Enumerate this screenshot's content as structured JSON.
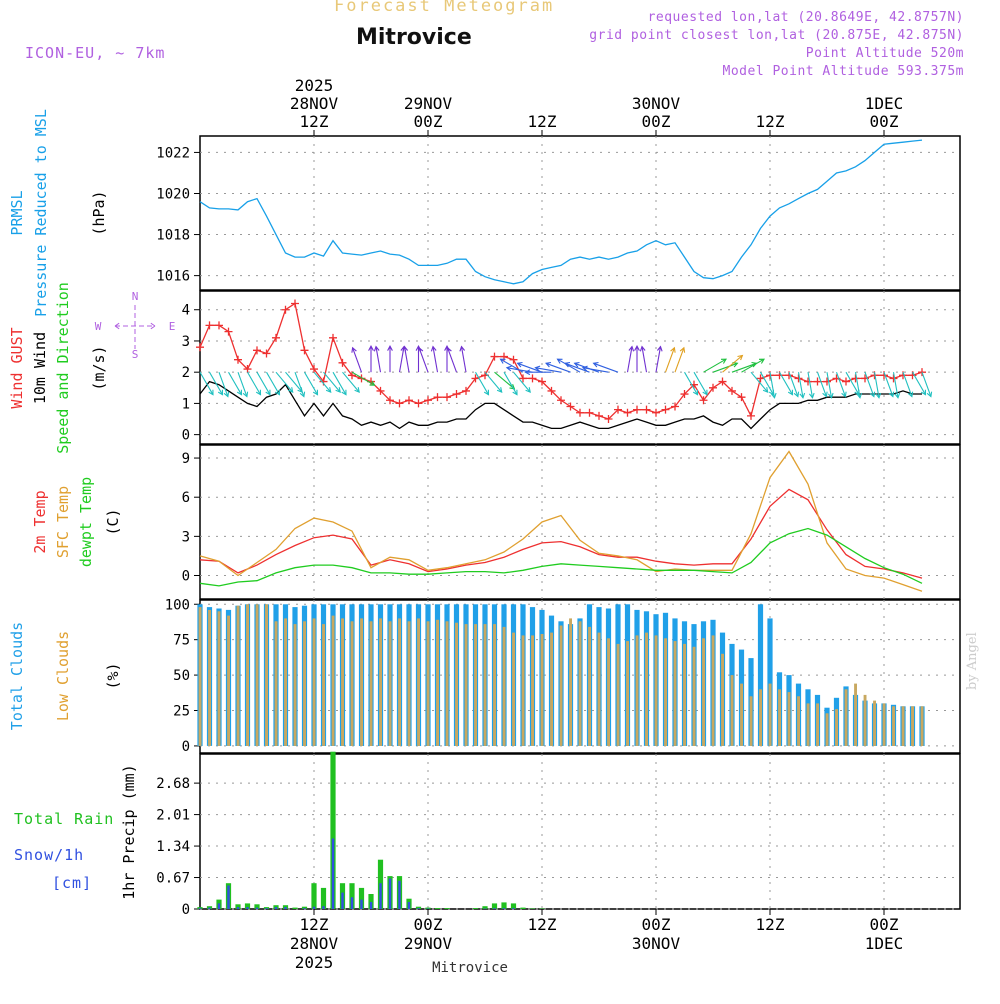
{
  "header": {
    "title": "Forecast Meteogram",
    "station": "Mitrovice",
    "model": "ICON-EU, ~ 7km",
    "requested": "requested lon,lat (20.8649E, 42.8757N)",
    "grid_point": "grid point closest lon,lat (20.875E, 42.875N)",
    "point_altitude": "Point Altitude 520m",
    "model_altitude": "Model Point Altitude 593.375m",
    "credit": "by Angel",
    "footer_station": "Mitrovice"
  },
  "time_axis": {
    "start_hour": 0,
    "end_hour": 80,
    "ticks": [
      {
        "hour": 12,
        "top": [
          "2025",
          "28NOV",
          "12Z"
        ],
        "bottom": [
          "12Z",
          "28NOV",
          "2025"
        ]
      },
      {
        "hour": 24,
        "top": [
          "29NOV",
          "00Z"
        ],
        "bottom": [
          "00Z",
          "29NOV"
        ]
      },
      {
        "hour": 36,
        "top": [
          "12Z"
        ],
        "bottom": [
          "12Z"
        ]
      },
      {
        "hour": 48,
        "top": [
          "30NOV",
          "00Z"
        ],
        "bottom": [
          "00Z",
          "30NOV"
        ]
      },
      {
        "hour": 60,
        "top": [
          "12Z"
        ],
        "bottom": [
          "12Z"
        ]
      },
      {
        "hour": 72,
        "top": [
          "1DEC",
          "00Z"
        ],
        "bottom": [
          "00Z",
          "1DEC"
        ]
      }
    ]
  },
  "colors": {
    "pressure": "#18a0e8",
    "gust": "#ee3030",
    "wind": "#000000",
    "temp": "#ee3030",
    "sfc_temp": "#e0a030",
    "dewpt": "#20cc20",
    "total_cloud": "#20a0e8",
    "low_cloud": "#c8a860",
    "rain": "#20c020",
    "snow": "#3050e0",
    "label_purple": "#b060e0"
  },
  "chart_data": [
    {
      "type": "line",
      "name": "pressure",
      "title": "Pressure Reduced to MSL",
      "labels": [
        "PRMSL",
        "Pressure Reduced to MSL"
      ],
      "unit": "(hPa)",
      "ylim": [
        1015.3,
        1022.8
      ],
      "yticks": [
        1016,
        1018,
        1020,
        1022
      ],
      "x": [
        0,
        1,
        2,
        3,
        4,
        5,
        6,
        7,
        8,
        9,
        10,
        11,
        12,
        13,
        14,
        15,
        16,
        17,
        18,
        19,
        20,
        21,
        22,
        23,
        24,
        25,
        26,
        27,
        28,
        29,
        30,
        31,
        32,
        33,
        34,
        35,
        36,
        37,
        38,
        39,
        40,
        41,
        42,
        43,
        44,
        45,
        46,
        47,
        48,
        49,
        50,
        51,
        52,
        53,
        54,
        55,
        56,
        57,
        58,
        59,
        60,
        61,
        62,
        63,
        64,
        65,
        66,
        67,
        68,
        69,
        70,
        71,
        72,
        73,
        74,
        75,
        76
      ],
      "values": [
        1019.6,
        1019.3,
        1019.25,
        1019.25,
        1019.2,
        1019.6,
        1019.75,
        1018.9,
        1018.0,
        1017.1,
        1016.9,
        1016.9,
        1017.1,
        1016.95,
        1017.7,
        1017.1,
        1017.05,
        1017.0,
        1017.1,
        1017.2,
        1017.05,
        1017.0,
        1016.8,
        1016.5,
        1016.5,
        1016.5,
        1016.6,
        1016.8,
        1016.8,
        1016.2,
        1015.95,
        1015.8,
        1015.7,
        1015.6,
        1015.7,
        1016.1,
        1016.3,
        1016.4,
        1016.5,
        1016.8,
        1016.9,
        1016.8,
        1016.9,
        1016.8,
        1016.9,
        1017.1,
        1017.2,
        1017.5,
        1017.7,
        1017.5,
        1017.6,
        1016.9,
        1016.2,
        1015.9,
        1015.85,
        1016.0,
        1016.2,
        1016.9,
        1017.5,
        1018.3,
        1018.9,
        1019.3,
        1019.5,
        1019.75,
        1020.0,
        1020.2,
        1020.6,
        1021.0,
        1021.1,
        1021.3,
        1021.6,
        1022.0,
        1022.4,
        1022.45,
        1022.5,
        1022.55,
        1022.6
      ]
    },
    {
      "type": "line",
      "name": "wind",
      "labels": [
        "Wind GUST",
        "10m Wind",
        "Speed and Direction"
      ],
      "unit": "(m/s)",
      "compass": {
        "n": "N",
        "s": "S",
        "w": "W",
        "e": "E"
      },
      "ylim": [
        -0.3,
        4.6
      ],
      "yticks": [
        0,
        1,
        2,
        3,
        4
      ],
      "x": [
        0,
        1,
        2,
        3,
        4,
        5,
        6,
        7,
        8,
        9,
        10,
        11,
        12,
        13,
        14,
        15,
        16,
        17,
        18,
        19,
        20,
        21,
        22,
        23,
        24,
        25,
        26,
        27,
        28,
        29,
        30,
        31,
        32,
        33,
        34,
        35,
        36,
        37,
        38,
        39,
        40,
        41,
        42,
        43,
        44,
        45,
        46,
        47,
        48,
        49,
        50,
        51,
        52,
        53,
        54,
        55,
        56,
        57,
        58,
        59,
        60,
        61,
        62,
        63,
        64,
        65,
        66,
        67,
        68,
        69,
        70,
        71,
        72,
        73,
        74,
        75,
        76
      ],
      "gust": [
        2.8,
        3.5,
        3.5,
        3.3,
        2.4,
        2.1,
        2.7,
        2.6,
        3.1,
        4.0,
        4.2,
        2.7,
        2.1,
        1.7,
        3.1,
        2.3,
        1.9,
        1.8,
        1.7,
        1.4,
        1.1,
        1.0,
        1.1,
        1.0,
        1.1,
        1.2,
        1.2,
        1.3,
        1.4,
        1.8,
        1.9,
        2.5,
        2.5,
        2.4,
        1.8,
        1.8,
        1.7,
        1.4,
        1.1,
        0.9,
        0.7,
        0.7,
        0.6,
        0.5,
        0.8,
        0.7,
        0.8,
        0.8,
        0.7,
        0.8,
        0.9,
        1.3,
        1.6,
        1.1,
        1.5,
        1.7,
        1.4,
        1.2,
        0.6,
        1.8,
        1.9,
        1.9,
        1.9,
        1.8,
        1.7,
        1.7,
        1.7,
        1.8,
        1.7,
        1.8,
        1.8,
        1.9,
        1.9,
        1.8,
        1.9,
        1.9,
        2.0
      ],
      "wind": [
        1.3,
        1.7,
        1.6,
        1.4,
        1.2,
        1.0,
        0.9,
        1.2,
        1.3,
        1.6,
        1.1,
        0.6,
        1.0,
        0.6,
        1.0,
        0.6,
        0.5,
        0.3,
        0.4,
        0.3,
        0.4,
        0.2,
        0.4,
        0.3,
        0.3,
        0.4,
        0.4,
        0.5,
        0.5,
        0.8,
        1.0,
        1.0,
        0.8,
        0.6,
        0.4,
        0.4,
        0.3,
        0.2,
        0.2,
        0.3,
        0.4,
        0.3,
        0.2,
        0.2,
        0.3,
        0.4,
        0.5,
        0.4,
        0.3,
        0.3,
        0.4,
        0.5,
        0.5,
        0.6,
        0.4,
        0.3,
        0.5,
        0.5,
        0.2,
        0.5,
        0.8,
        1.0,
        1.0,
        1.0,
        1.1,
        1.1,
        1.2,
        1.2,
        1.2,
        1.3,
        1.3,
        1.3,
        1.3,
        1.3,
        1.4,
        1.3,
        1.3
      ],
      "direction_deg": [
        330,
        330,
        340,
        330,
        340,
        330,
        330,
        330,
        320,
        320,
        340,
        330,
        320,
        320,
        330,
        320,
        300,
        160,
        180,
        170,
        180,
        190,
        170,
        180,
        160,
        170,
        180,
        160,
        170,
        330,
        320,
        310,
        330,
        320,
        120,
        100,
        110,
        90,
        100,
        110,
        120,
        110,
        110,
        100,
        110,
        190,
        180,
        170,
        190,
        200,
        200,
        330,
        330,
        240,
        250,
        230,
        250,
        240,
        320,
        330,
        350,
        330,
        340,
        350,
        350,
        340,
        350,
        340,
        330,
        350,
        340,
        350,
        340,
        350,
        340,
        330,
        340
      ]
    },
    {
      "type": "line",
      "name": "temperature",
      "labels": [
        "2m Temp",
        "SFC Temp",
        "dewpt Temp"
      ],
      "unit": "(C)",
      "ylim": [
        -1.8,
        10.0
      ],
      "yticks": [
        0,
        3,
        6,
        9
      ],
      "x": [
        0,
        2,
        4,
        6,
        8,
        10,
        12,
        14,
        16,
        18,
        20,
        22,
        24,
        26,
        28,
        30,
        32,
        34,
        36,
        38,
        40,
        42,
        44,
        46,
        48,
        50,
        52,
        54,
        56,
        58,
        60,
        62,
        64,
        66,
        68,
        70,
        72,
        74,
        76
      ],
      "series": [
        {
          "name": "2m Temp",
          "values": [
            1.2,
            1.1,
            0.2,
            0.8,
            1.6,
            2.3,
            2.9,
            3.1,
            2.8,
            0.8,
            1.2,
            0.9,
            0.3,
            0.5,
            0.8,
            1.0,
            1.4,
            2.0,
            2.5,
            2.6,
            2.2,
            1.6,
            1.4,
            1.4,
            1.1,
            0.9,
            0.8,
            0.9,
            0.9,
            2.8,
            5.3,
            6.6,
            5.8,
            3.5,
            1.6,
            0.7,
            0.5,
            0.2,
            -0.2
          ]
        },
        {
          "name": "SFC Temp",
          "values": [
            1.5,
            1.1,
            0.0,
            1.0,
            2.0,
            3.6,
            4.4,
            4.1,
            3.4,
            0.6,
            1.4,
            1.2,
            0.4,
            0.6,
            0.9,
            1.2,
            1.8,
            2.8,
            4.1,
            4.6,
            2.7,
            1.7,
            1.5,
            1.2,
            0.3,
            0.5,
            0.4,
            0.4,
            0.4,
            3.2,
            7.5,
            9.5,
            7.0,
            2.5,
            0.5,
            0.0,
            -0.2,
            -0.7,
            -1.2
          ]
        },
        {
          "name": "dewpt Temp",
          "values": [
            -0.6,
            -0.8,
            -0.5,
            -0.4,
            0.2,
            0.6,
            0.8,
            0.8,
            0.6,
            0.2,
            0.2,
            0.1,
            0.1,
            0.2,
            0.3,
            0.3,
            0.2,
            0.4,
            0.7,
            0.9,
            0.8,
            0.7,
            0.6,
            0.5,
            0.4,
            0.4,
            0.4,
            0.3,
            0.2,
            1.0,
            2.5,
            3.2,
            3.6,
            3.1,
            2.2,
            1.3,
            0.6,
            0.1,
            -0.6
          ]
        }
      ]
    },
    {
      "type": "bar",
      "name": "clouds",
      "labels": [
        "Total Clouds",
        "Low Clouds"
      ],
      "unit": "(%)",
      "ylim": [
        -5,
        103
      ],
      "yticks": [
        0,
        25,
        50,
        75,
        100
      ],
      "x": [
        0,
        1,
        2,
        3,
        4,
        5,
        6,
        7,
        8,
        9,
        10,
        11,
        12,
        13,
        14,
        15,
        16,
        17,
        18,
        19,
        20,
        21,
        22,
        23,
        24,
        25,
        26,
        27,
        28,
        29,
        30,
        31,
        32,
        33,
        34,
        35,
        36,
        37,
        38,
        39,
        40,
        41,
        42,
        43,
        44,
        45,
        46,
        47,
        48,
        49,
        50,
        51,
        52,
        53,
        54,
        55,
        56,
        57,
        58,
        59,
        60,
        61,
        62,
        63,
        64,
        65,
        66,
        67,
        68,
        69,
        70,
        71,
        72,
        73,
        74,
        75,
        76
      ],
      "series": [
        {
          "name": "Total Clouds",
          "values": [
            100,
            98,
            97,
            96,
            99,
            100,
            100,
            100,
            100,
            100,
            98,
            99,
            100,
            100,
            100,
            100,
            100,
            100,
            100,
            100,
            100,
            100,
            100,
            100,
            100,
            100,
            100,
            100,
            100,
            100,
            100,
            100,
            100,
            100,
            100,
            98,
            96,
            92,
            88,
            86,
            90,
            100,
            98,
            97,
            100,
            100,
            96,
            95,
            93,
            94,
            90,
            88,
            86,
            88,
            89,
            80,
            72,
            68,
            62,
            100,
            90,
            52,
            50,
            44,
            40,
            36,
            27,
            34,
            42,
            36,
            32,
            30,
            30,
            29,
            28,
            28,
            28
          ]
        },
        {
          "name": "Low Clouds",
          "values": [
            98,
            96,
            95,
            92,
            99,
            100,
            100,
            100,
            88,
            90,
            86,
            88,
            90,
            86,
            92,
            90,
            88,
            90,
            88,
            90,
            88,
            90,
            88,
            90,
            88,
            89,
            88,
            87,
            86,
            86,
            86,
            86,
            84,
            80,
            78,
            78,
            79,
            80,
            85,
            90,
            88,
            84,
            80,
            76,
            72,
            74,
            78,
            80,
            78,
            76,
            74,
            72,
            70,
            76,
            78,
            65,
            50,
            44,
            35,
            40,
            44,
            40,
            38,
            35,
            30,
            30,
            23,
            26,
            40,
            44,
            36,
            32,
            30,
            28,
            28,
            28,
            28
          ]
        }
      ]
    },
    {
      "type": "bar",
      "name": "precipitation",
      "labels": [
        "Total Rain",
        "Snow/1h",
        "[cm]"
      ],
      "unit": "1hr Precip (mm)",
      "ylim": [
        0,
        3.3
      ],
      "yticks": [
        0,
        0.67,
        1.34,
        2.01,
        2.68
      ],
      "ytick_labels": [
        "0",
        "0.67",
        "1.34",
        "2.01",
        "2.68"
      ],
      "x": [
        0,
        1,
        2,
        3,
        4,
        5,
        6,
        7,
        8,
        9,
        10,
        11,
        12,
        13,
        14,
        15,
        16,
        17,
        18,
        19,
        20,
        21,
        22,
        23,
        24,
        25,
        26,
        27,
        28,
        29,
        30,
        31,
        32,
        33,
        34,
        35,
        36,
        37,
        38,
        39,
        40,
        41,
        42,
        43,
        44,
        45,
        46,
        47,
        48,
        49,
        50,
        51,
        52,
        53,
        54,
        55,
        56,
        57,
        58,
        59,
        60,
        61,
        62,
        63,
        64,
        65,
        66,
        67,
        68,
        69,
        70,
        71,
        72,
        73,
        74,
        75,
        76
      ],
      "series": [
        {
          "name": "Total Rain",
          "values": [
            0.04,
            0.06,
            0.2,
            0.55,
            0.1,
            0.12,
            0.1,
            0.04,
            0.08,
            0.08,
            0.03,
            0.05,
            0.55,
            0.45,
            3.35,
            0.55,
            0.55,
            0.45,
            0.32,
            1.05,
            0.7,
            0.7,
            0.22,
            0.05,
            0.03,
            0.02,
            0.02,
            0,
            0,
            0.02,
            0.06,
            0.12,
            0.14,
            0.12,
            0.03,
            0.01,
            0.01,
            0,
            0,
            0,
            0,
            0,
            0,
            0,
            0,
            0,
            0,
            0,
            0,
            0,
            0,
            0,
            0,
            0,
            0,
            0,
            0,
            0,
            0,
            0,
            0,
            0,
            0,
            0,
            0,
            0,
            0,
            0,
            0,
            0,
            0,
            0,
            0,
            0,
            0,
            0,
            0
          ]
        },
        {
          "name": "Snow/1h",
          "values": [
            0.02,
            0.03,
            0.12,
            0.5,
            0.04,
            0.04,
            0.03,
            0.02,
            0.04,
            0.04,
            0,
            0.02,
            0.05,
            0.06,
            1.5,
            0.35,
            0.25,
            0.2,
            0.15,
            0.55,
            0.65,
            0.6,
            0.15,
            0.02,
            0.01,
            0,
            0,
            0,
            0,
            0,
            0.01,
            0.02,
            0.02,
            0.02,
            0,
            0,
            0,
            0,
            0,
            0,
            0,
            0,
            0,
            0,
            0,
            0,
            0,
            0,
            0,
            0,
            0,
            0,
            0,
            0,
            0,
            0,
            0,
            0,
            0,
            0,
            0,
            0,
            0,
            0,
            0,
            0,
            0,
            0,
            0,
            0,
            0,
            0,
            0,
            0,
            0,
            0,
            0
          ]
        }
      ]
    }
  ]
}
